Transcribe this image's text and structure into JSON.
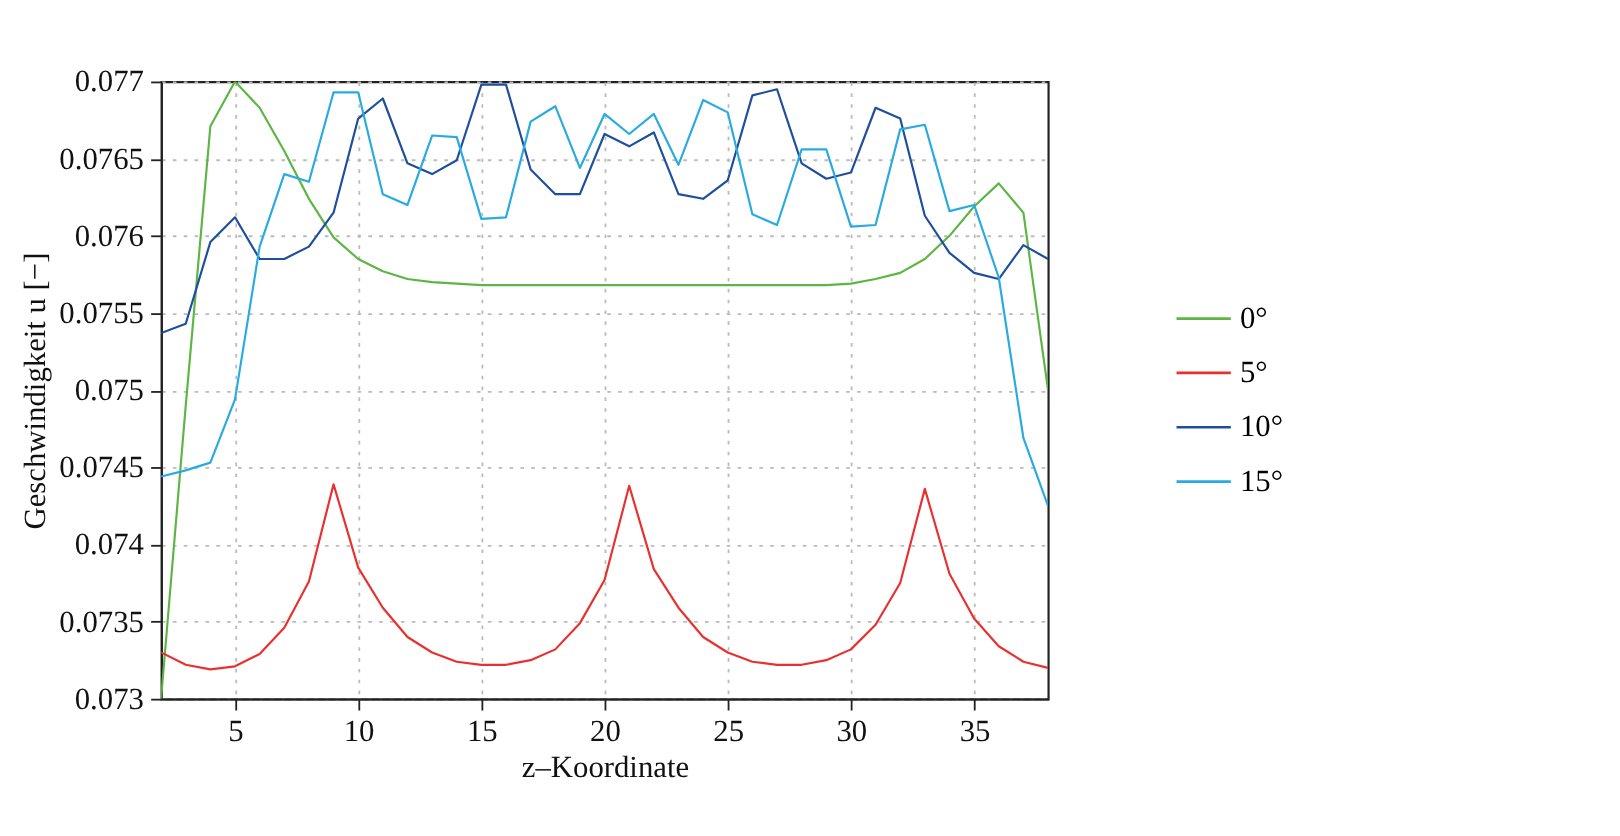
{
  "chart_data": {
    "type": "line",
    "xlabel": "z–Koordinate",
    "ylabel": "Geschwindigkeit u [−]",
    "x": [
      2,
      3,
      4,
      5,
      6,
      7,
      8,
      9,
      10,
      11,
      12,
      13,
      14,
      15,
      16,
      17,
      18,
      19,
      20,
      21,
      22,
      23,
      24,
      25,
      26,
      27,
      28,
      29,
      30,
      31,
      32,
      33,
      34,
      35,
      36,
      37,
      38
    ],
    "series": [
      {
        "name": "0°",
        "color": "#5db544",
        "values": [
          0.073,
          0.0749,
          0.07671,
          0.077,
          0.07683,
          0.07655,
          0.07624,
          0.07599,
          0.07585,
          0.07577,
          0.07572,
          0.0757,
          0.07569,
          0.07568,
          0.07568,
          0.07568,
          0.07568,
          0.07568,
          0.07568,
          0.07568,
          0.07568,
          0.07568,
          0.07568,
          0.07568,
          0.07568,
          0.07568,
          0.07568,
          0.07568,
          0.07569,
          0.07572,
          0.07576,
          0.07585,
          0.076,
          0.07619,
          0.07634,
          0.07615,
          0.075
        ]
      },
      {
        "name": "5°",
        "color": "#e8312f",
        "values": [
          0.0733,
          0.07322,
          0.07319,
          0.07321,
          0.07329,
          0.07346,
          0.07376,
          0.07439,
          0.07385,
          0.07359,
          0.0734,
          0.0733,
          0.07324,
          0.07322,
          0.07322,
          0.07325,
          0.07332,
          0.07349,
          0.07377,
          0.07438,
          0.07384,
          0.07359,
          0.0734,
          0.0733,
          0.07324,
          0.07322,
          0.07322,
          0.07325,
          0.07332,
          0.07348,
          0.07375,
          0.07436,
          0.07381,
          0.07352,
          0.07334,
          0.07324,
          0.0732
        ]
      },
      {
        "name": "10°",
        "color": "#1f4e9c",
        "values": [
          0.07537,
          0.07543,
          0.07596,
          0.07612,
          0.07585,
          0.07585,
          0.07593,
          0.07615,
          0.07676,
          0.07689,
          0.07647,
          0.0764,
          0.07649,
          0.07698,
          0.07698,
          0.07643,
          0.07627,
          0.07627,
          0.07666,
          0.07658,
          0.07667,
          0.07627,
          0.07624,
          0.07636,
          0.07691,
          0.07695,
          0.07647,
          0.07637,
          0.07641,
          0.07683,
          0.07676,
          0.07613,
          0.07589,
          0.07576,
          0.07572,
          0.07594,
          0.07585
        ]
      },
      {
        "name": "15°",
        "color": "#29aae1",
        "values": [
          0.07444,
          0.07448,
          0.07453,
          0.07494,
          0.07593,
          0.0764,
          0.07635,
          0.07693,
          0.07693,
          0.07627,
          0.0762,
          0.07665,
          0.07664,
          0.07611,
          0.07612,
          0.07674,
          0.07684,
          0.07644,
          0.07679,
          0.07666,
          0.07679,
          0.07646,
          0.07688,
          0.0768,
          0.07614,
          0.07607,
          0.07656,
          0.07656,
          0.07606,
          0.07607,
          0.07669,
          0.07672,
          0.07616,
          0.0762,
          0.07573,
          0.07469,
          0.07425
        ]
      }
    ],
    "xlim": [
      2,
      38
    ],
    "xticks": [
      5,
      10,
      15,
      20,
      25,
      30,
      35
    ],
    "ylim": [
      0.073,
      0.077
    ],
    "yticks": [
      0.073,
      0.0735,
      0.074,
      0.0745,
      0.075,
      0.0755,
      0.076,
      0.0765,
      0.077
    ],
    "grid": true,
    "legend": "right",
    "line_style": "solid",
    "marker": "none"
  }
}
